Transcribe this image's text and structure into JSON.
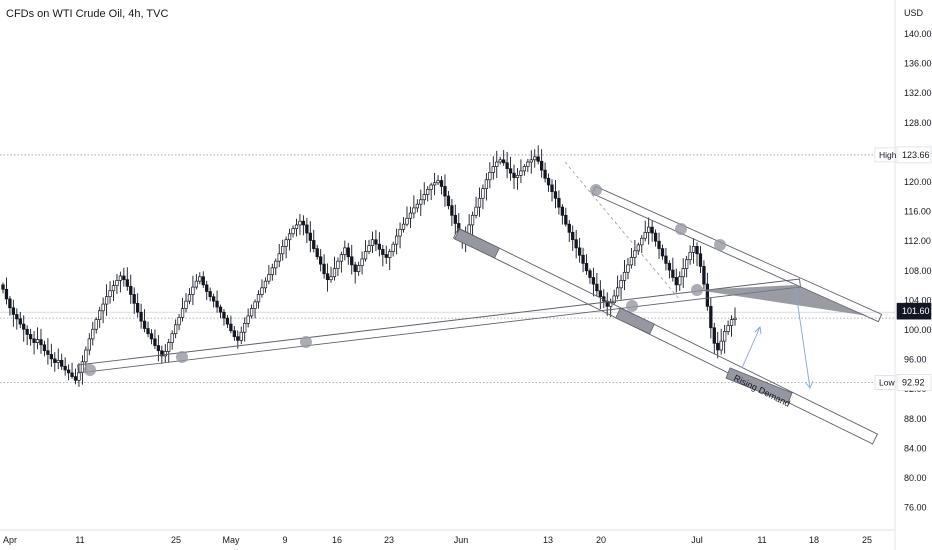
{
  "chart_data": {
    "type": "candlestick",
    "title": "CFDs on WTI Crude Oil, 4h, TVC",
    "currency": "USD",
    "y_axis": {
      "ticks": [
        140,
        136,
        132,
        128,
        124,
        120,
        116,
        112,
        108,
        104,
        100,
        96,
        92,
        88,
        84,
        80,
        76
      ],
      "labels": [
        "140.00",
        "136.00",
        "132.00",
        "128.00",
        "124.00",
        "120.00",
        "116.00",
        "112.00",
        "108.00",
        "104.00",
        "100.00",
        "96.00",
        "92.00",
        "88.00",
        "84.00",
        "80.00",
        "76.00"
      ],
      "range": [
        74,
        143
      ]
    },
    "x_axis": {
      "labels": [
        "Apr",
        "11",
        "25",
        "May",
        "9",
        "16",
        "23",
        "Jun",
        "13",
        "20",
        "Jul",
        "11",
        "18",
        "25"
      ]
    },
    "markers": {
      "high": {
        "label": "High",
        "value": 123.66,
        "text": "123.66"
      },
      "low": {
        "label": "Low",
        "value": 92.92,
        "text": "92.92"
      },
      "last": {
        "value": 101.6,
        "text": "101.60"
      }
    },
    "annotation": "Rising Demand",
    "colors": {
      "up": "#131722",
      "down": "#131722",
      "channel": "#5d606b",
      "arrow": "#7fa8d8",
      "high_low_line": "#9598a1",
      "last_badge": "#131722"
    },
    "series": {
      "close": [
        105.5,
        104.2,
        103.0,
        102.1,
        101.5,
        100.8,
        100.1,
        99.4,
        98.8,
        98.3,
        98.7,
        98.0,
        97.2,
        96.7,
        96.1,
        95.6,
        95.9,
        95.1,
        94.6,
        94.2,
        93.7,
        93.2,
        94.3,
        95.7,
        97.3,
        98.8,
        100.1,
        101.4,
        102.6,
        103.5,
        104.5,
        105.3,
        106.0,
        106.7,
        107.3,
        106.8,
        105.9,
        104.8,
        103.6,
        102.4,
        101.2,
        100.2,
        99.5,
        98.8,
        97.9,
        97.2,
        96.5,
        97.1,
        98.3,
        99.5,
        100.7,
        101.7,
        102.9,
        103.9,
        104.8,
        105.8,
        106.6,
        107.2,
        106.1,
        105.2,
        104.5,
        103.9,
        103.1,
        102.4,
        101.6,
        100.8,
        99.9,
        99.1,
        98.6,
        99.7,
        100.9,
        101.9,
        102.9,
        103.8,
        104.8,
        105.7,
        106.6,
        107.5,
        108.4,
        109.3,
        110.3,
        111.3,
        112.2,
        113.0,
        113.7,
        114.2,
        114.7,
        114.2,
        113.1,
        112.1,
        111.0,
        109.9,
        108.9,
        107.6,
        106.8,
        107.2,
        108.3,
        109.3,
        110.2,
        111.1,
        109.9,
        108.8,
        107.9,
        108.7,
        109.6,
        110.6,
        111.4,
        112.2,
        111.6,
        110.9,
        110.2,
        109.8,
        110.6,
        111.6,
        112.7,
        113.6,
        114.3,
        115.1,
        115.8,
        116.5,
        117.0,
        117.6,
        118.3,
        119.0,
        119.6,
        119.9,
        120.2,
        119.4,
        118.1,
        116.8,
        115.5,
        114.4,
        113.1,
        111.9,
        112.9,
        114.2,
        115.5,
        116.6,
        117.8,
        119.1,
        120.3,
        121.3,
        122.1,
        122.7,
        123.0,
        122.6,
        121.8,
        121.2,
        120.6,
        120.9,
        121.5,
        122.1,
        122.7,
        123.0,
        123.4,
        122.8,
        121.6,
        120.5,
        119.6,
        118.7,
        117.8,
        116.6,
        115.5,
        114.3,
        113.2,
        112.2,
        111.1,
        110.1,
        109.0,
        108.0,
        107.1,
        106.2,
        105.3,
        104.5,
        103.9,
        103.2,
        103.7,
        104.6,
        105.7,
        106.7,
        107.8,
        108.8,
        109.8,
        110.7,
        111.5,
        112.4,
        113.2,
        113.9,
        113.1,
        112.0,
        111.0,
        110.0,
        109.0,
        108.1,
        107.1,
        106.1,
        107.2,
        108.3,
        109.5,
        110.5,
        111.3,
        110.3,
        108.6,
        106.2,
        103.2,
        100.3,
        98.2,
        97.3,
        98.5,
        99.8,
        100.6,
        101.4,
        101.6
      ]
    }
  }
}
